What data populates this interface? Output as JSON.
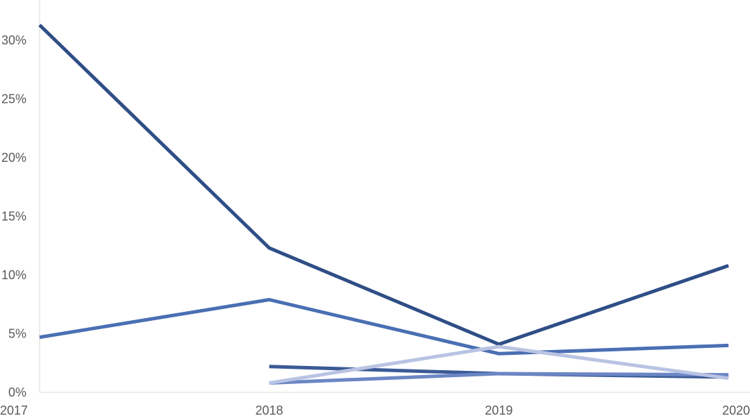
{
  "chart_data": {
    "type": "line",
    "title": "",
    "xlabel": "",
    "ylabel": "",
    "categories": [
      "2017",
      "2018",
      "2019",
      "2020"
    ],
    "ylim": [
      0,
      30
    ],
    "yticks": [
      0,
      5,
      10,
      15,
      20,
      25,
      30
    ],
    "ytick_labels": [
      "0%",
      "5%",
      "10%",
      "15%",
      "20%",
      "25%",
      "30%"
    ],
    "grid": false,
    "legend": "none",
    "series": [
      {
        "color": "#2f4e86",
        "values": [
          31.3,
          12.3,
          4.1,
          10.8
        ]
      },
      {
        "color": "#4a6fb3",
        "values": [
          4.7,
          7.9,
          3.3,
          4.0
        ]
      },
      {
        "color": "#3b5a96",
        "values": [
          null,
          2.2,
          1.6,
          1.3
        ]
      },
      {
        "color": "#6b86c4",
        "values": [
          null,
          0.8,
          1.6,
          1.5
        ]
      },
      {
        "color": "#b9c3e3",
        "values": [
          null,
          0.8,
          3.9,
          1.2
        ]
      }
    ]
  }
}
